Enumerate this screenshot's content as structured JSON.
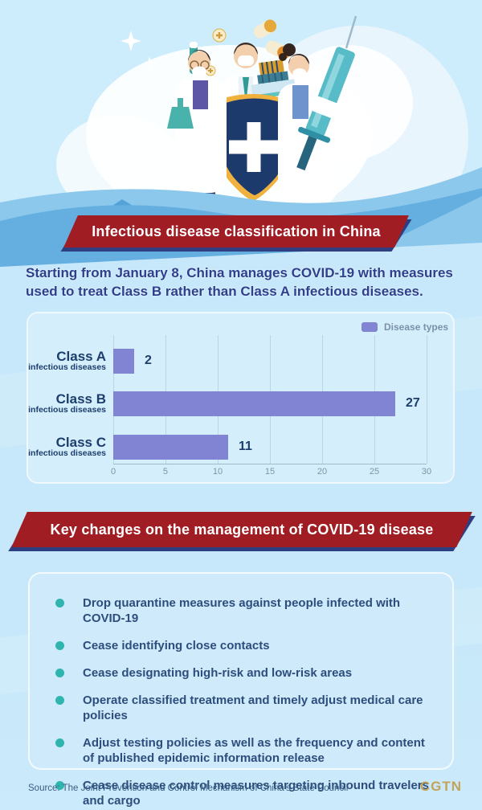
{
  "banners": {
    "classification": "Infectious disease classification in China",
    "key_changes": "Key changes on the management of COVID-19 disease"
  },
  "subtitle": "Starting from January 8, China manages COVID-19 with measures used to treat Class B rather than Class A infectious diseases.",
  "chart_data": {
    "type": "bar",
    "orientation": "horizontal",
    "legend": "Disease types",
    "legend_position": "top-right",
    "categories": [
      {
        "label": "Class A",
        "sublabel": "infectious diseases"
      },
      {
        "label": "Class B",
        "sublabel": "infectious diseases"
      },
      {
        "label": "Class C",
        "sublabel": "infectious diseases"
      }
    ],
    "values": [
      2,
      27,
      11
    ],
    "xlim": [
      0,
      30
    ],
    "ticks": [
      0,
      5,
      10,
      15,
      20,
      25,
      30
    ],
    "grid": true,
    "bar_color": "#8184d2"
  },
  "list": {
    "items": [
      "Drop quarantine measures against people infected with COVID-19",
      "Cease identifying close contacts",
      "Cease designating high-risk and low-risk areas",
      "Operate classified treatment and timely adjust medical care policies",
      "Adjust testing policies as well as the frequency and content of published epidemic information release",
      "Cease disease control measures targeting inbound travelers and cargo"
    ]
  },
  "footer": {
    "source": "Source: The Joint Prevention and Control Mechanism of China's State Council",
    "logo": "CGTN"
  },
  "hero": {
    "illustration": "three-doctors-with-shield-cross-syringe-and-medicine"
  },
  "colors": {
    "background_blue": "#c6e8fa",
    "banner_red": "#a11d24",
    "banner_shadow_navy": "#2e3e80",
    "subtitle_navy": "#2f3f8c",
    "bar_purple": "#8184d2",
    "chart_text_navy": "#1d3e6d",
    "bullet_teal": "#2fb5ae",
    "list_text": "#2d4d7c",
    "logo_gold": "#c2a35b"
  }
}
